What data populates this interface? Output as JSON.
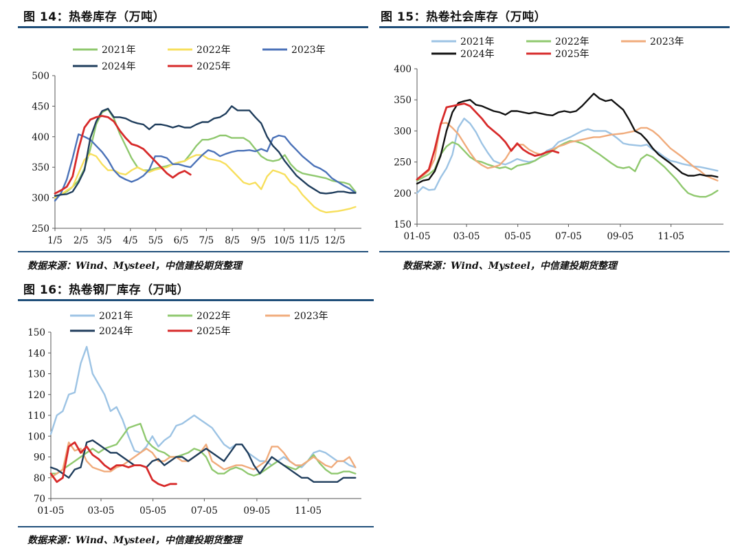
{
  "panels": [
    {
      "title": "图 14：热卷库存（万吨）",
      "source": "数据来源：Wind、Mysteel，中信建投期货整理",
      "chart_data": {
        "type": "line",
        "title": "图 14：热卷库存（万吨）",
        "xlim": [
          0,
          52
        ],
        "ylim": [
          250,
          500
        ],
        "yticks": [
          250,
          300,
          350,
          400,
          450,
          500
        ],
        "xticks": [
          {
            "x": 0,
            "label": "1/5"
          },
          {
            "x": 4.4,
            "label": "2/5"
          },
          {
            "x": 8.4,
            "label": "3/5"
          },
          {
            "x": 12.8,
            "label": "4/5"
          },
          {
            "x": 17.1,
            "label": "5/5"
          },
          {
            "x": 21.4,
            "label": "6/5"
          },
          {
            "x": 25.7,
            "label": "7/5"
          },
          {
            "x": 30.1,
            "label": "8/5"
          },
          {
            "x": 34.5,
            "label": "9/5"
          },
          {
            "x": 38.9,
            "label": "10/5"
          },
          {
            "x": 43.1,
            "label": "11/5"
          },
          {
            "x": 47.5,
            "label": "12/5"
          }
        ],
        "legend_cols": 3,
        "series": [
          {
            "name": "2021年",
            "color": "#8fc86e",
            "values": [
              303,
              305,
              310,
              318,
              328,
              348,
              380,
              420,
              440,
              445,
              430,
              405,
              385,
              365,
              350,
              345,
              345,
              348,
              350,
              352,
              355,
              358,
              360,
              372,
              385,
              395,
              395,
              398,
              402,
              402,
              398,
              398,
              398,
              392,
              380,
              368,
              362,
              360,
              362,
              370,
              355,
              345,
              340,
              338,
              336,
              334,
              332,
              328,
              326,
              325,
              322,
              310
            ]
          },
          {
            "name": "2022年",
            "color": "#f7df5c",
            "values": [
              300,
              305,
              312,
              318,
              340,
              362,
              372,
              368,
              355,
              345,
              345,
              340,
              338,
              345,
              350,
              345,
              342,
              346,
              348,
              350,
              355,
              358,
              360,
              366,
              370,
              370,
              364,
              362,
              360,
              355,
              345,
              335,
              325,
              322,
              325,
              314,
              335,
              345,
              342,
              338,
              325,
              318,
              305,
              295,
              285,
              279,
              276,
              277,
              278,
              280,
              282,
              285
            ]
          },
          {
            "name": "2023年",
            "color": "#4b72b8",
            "values": [
              295,
              307,
              330,
              365,
              404,
              400,
              395,
              385,
              375,
              362,
              345,
              335,
              330,
              326,
              330,
              336,
              346,
              368,
              368,
              365,
              355,
              355,
              352,
              350,
              360,
              370,
              378,
              375,
              368,
              372,
              375,
              377,
              377,
              378,
              376,
              380,
              376,
              398,
              402,
              400,
              388,
              378,
              368,
              360,
              352,
              348,
              342,
              332,
              326,
              320,
              315,
              308
            ]
          },
          {
            "name": "2024年",
            "color": "#1f3d5c",
            "values": [
              303,
              305,
              306,
              310,
              325,
              345,
              398,
              425,
              442,
              446,
              432,
              432,
              430,
              425,
              422,
              420,
              412,
              420,
              420,
              418,
              415,
              418,
              415,
              415,
              420,
              424,
              424,
              430,
              432,
              438,
              450,
              443,
              443,
              443,
              432,
              422,
              400,
              385,
              375,
              360,
              348,
              336,
              328,
              320,
              314,
              308,
              307,
              308,
              310,
              310,
              308,
              308
            ]
          },
          {
            "name": "2025年",
            "color": "#d72a2a",
            "values": [
              307,
              312,
              318,
              335,
              380,
              415,
              428,
              432,
              434,
              432,
              425,
              410,
              398,
              388,
              385,
              380,
              370,
              360,
              350,
              340,
              333,
              340,
              344,
              338
            ]
          }
        ]
      }
    },
    {
      "title": "图 15：热卷社会库存（万吨）",
      "source": "数据来源：Wind、Mysteel，中信建投期货整理",
      "chart_data": {
        "type": "line",
        "title": "图 15：热卷社会库存（万吨）",
        "xlim": [
          0,
          52
        ],
        "ylim": [
          150,
          400
        ],
        "yticks": [
          150,
          200,
          250,
          300,
          350,
          400
        ],
        "xticks": [
          {
            "x": 0,
            "label": "01-05"
          },
          {
            "x": 8.4,
            "label": "03-05"
          },
          {
            "x": 17.1,
            "label": "05-05"
          },
          {
            "x": 25.7,
            "label": "07-05"
          },
          {
            "x": 34.5,
            "label": "09-05"
          },
          {
            "x": 43.1,
            "label": "11-05"
          }
        ],
        "legend_cols": 3,
        "series": [
          {
            "name": "2021年",
            "color": "#9cc3e4",
            "values": [
              200,
              210,
              205,
              206,
              225,
              240,
              262,
              305,
              320,
              312,
              298,
              280,
              265,
              252,
              248,
              246,
              250,
              255,
              252,
              250,
              252,
              258,
              268,
              272,
              282,
              286,
              290,
              295,
              300,
              303,
              300,
              300,
              300,
              295,
              288,
              280,
              278,
              277,
              276,
              278,
              270,
              265,
              258,
              252,
              250,
              247,
              245,
              243,
              242,
              240,
              238,
              236
            ]
          },
          {
            "name": "2022年",
            "color": "#8fc86e",
            "values": [
              220,
              225,
              230,
              238,
              262,
              275,
              282,
              278,
              268,
              258,
              252,
              250,
              246,
              243,
              240,
              242,
              238,
              244,
              246,
              248,
              252,
              258,
              262,
              268,
              275,
              280,
              284,
              283,
              280,
              275,
              268,
              262,
              255,
              248,
              242,
              240,
              242,
              235,
              255,
              262,
              258,
              250,
              242,
              232,
              222,
              210,
              200,
              196,
              194,
              194,
              198,
              204
            ]
          },
          {
            "name": "2023年",
            "color": "#f0ab7b",
            "values": [
              222,
              228,
              236,
              255,
              312,
              313,
              305,
              295,
              280,
              265,
              252,
              245,
              240,
              242,
              245,
              255,
              270,
              278,
              278,
              270,
              265,
              262,
              265,
              270,
              275,
              278,
              282,
              284,
              286,
              288,
              290,
              290,
              292,
              294,
              295,
              296,
              298,
              300,
              305,
              305,
              300,
              292,
              282,
              272,
              265,
              258,
              250,
              242,
              236,
              228,
              224,
              220
            ]
          },
          {
            "name": "2024年",
            "color": "#111111",
            "values": [
              215,
              220,
              222,
              235,
              260,
              300,
              330,
              345,
              348,
              350,
              342,
              340,
              336,
              332,
              330,
              326,
              332,
              332,
              330,
              328,
              330,
              328,
              326,
              325,
              330,
              332,
              330,
              332,
              340,
              350,
              360,
              352,
              348,
              350,
              342,
              334,
              318,
              300,
              295,
              285,
              272,
              262,
              255,
              248,
              240,
              232,
              228,
              228,
              230,
              228,
              228,
              226
            ]
          },
          {
            "name": "2025年",
            "color": "#d72a2a",
            "values": [
              222,
              230,
              238,
              270,
              310,
              338,
              340,
              342,
              344,
              340,
              330,
              320,
              308,
              300,
              292,
              282,
              268,
              280,
              270,
              264,
              260,
              262,
              266,
              268,
              265
            ]
          }
        ]
      }
    },
    {
      "title": "图 16：热卷钢厂库存（万吨）",
      "source": "数据来源：Wind、Mysteel，中信建投期货整理",
      "chart_data": {
        "type": "line",
        "title": "图 16：热卷钢厂库存（万吨）",
        "xlim": [
          0,
          52
        ],
        "ylim": [
          70,
          150
        ],
        "yticks": [
          70,
          80,
          90,
          100,
          110,
          120,
          130,
          140,
          150
        ],
        "xticks": [
          {
            "x": 0,
            "label": "01-05"
          },
          {
            "x": 8.4,
            "label": "03-05"
          },
          {
            "x": 17.1,
            "label": "05-05"
          },
          {
            "x": 25.7,
            "label": "07-05"
          },
          {
            "x": 34.5,
            "label": "09-05"
          },
          {
            "x": 43.1,
            "label": "11-05"
          }
        ],
        "legend_cols": 3,
        "series": [
          {
            "name": "2021年",
            "color": "#9cc3e4",
            "values": [
              101,
              110,
              112,
              120,
              121,
              135,
              143,
              130,
              125,
              120,
              112,
              114,
              108,
              100,
              93,
              92,
              95,
              100,
              95,
              98,
              100,
              105,
              106,
              108,
              110,
              108,
              106,
              104,
              100,
              96,
              94,
              96,
              96,
              92,
              90,
              88,
              88,
              86,
              88,
              90,
              88,
              86,
              85,
              88,
              92,
              93,
              92,
              90,
              88,
              88,
              86,
              85
            ]
          },
          {
            "name": "2022年",
            "color": "#8fc86e",
            "values": [
              82,
              82,
              84,
              86,
              88,
              90,
              92,
              94,
              92,
              94,
              95,
              96,
              100,
              104,
              105,
              106,
              98,
              95,
              93,
              92,
              90,
              90,
              91,
              92,
              94,
              93,
              90,
              84,
              82,
              82,
              84,
              85,
              84,
              82,
              81,
              82,
              84,
              86,
              88,
              86,
              85,
              84,
              86,
              88,
              91,
              87,
              84,
              82,
              82,
              83,
              83,
              82
            ]
          },
          {
            "name": "2023年",
            "color": "#f0ab7b",
            "values": [
              80,
              82,
              84,
              97,
              93,
              94,
              88,
              85,
              84,
              83,
              83,
              85,
              86,
              88,
              90,
              92,
              94,
              92,
              88,
              88,
              90,
              90,
              88,
              88,
              90,
              92,
              96,
              88,
              86,
              84,
              85,
              86,
              86,
              85,
              84,
              86,
              88,
              95,
              95,
              92,
              88,
              86,
              86,
              88,
              90,
              88,
              86,
              85,
              88,
              88,
              90,
              85
            ]
          },
          {
            "name": "2024年",
            "color": "#1f3d5c",
            "values": [
              85,
              84,
              82,
              80,
              84,
              85,
              97,
              98,
              96,
              94,
              92,
              92,
              90,
              88,
              86,
              86,
              85,
              88,
              89,
              86,
              88,
              90,
              90,
              88,
              90,
              92,
              94,
              92,
              90,
              88,
              92,
              96,
              96,
              92,
              86,
              82,
              86,
              90,
              88,
              86,
              84,
              82,
              80,
              80,
              78,
              78,
              78,
              78,
              78,
              80,
              80,
              80
            ]
          },
          {
            "name": "2025年",
            "color": "#d72a2a",
            "values": [
              82,
              78,
              80,
              95,
              97,
              92,
              95,
              91,
              89,
              86,
              84,
              86,
              86,
              85,
              86,
              86,
              85,
              79,
              77,
              76,
              77,
              77
            ]
          }
        ]
      }
    }
  ]
}
